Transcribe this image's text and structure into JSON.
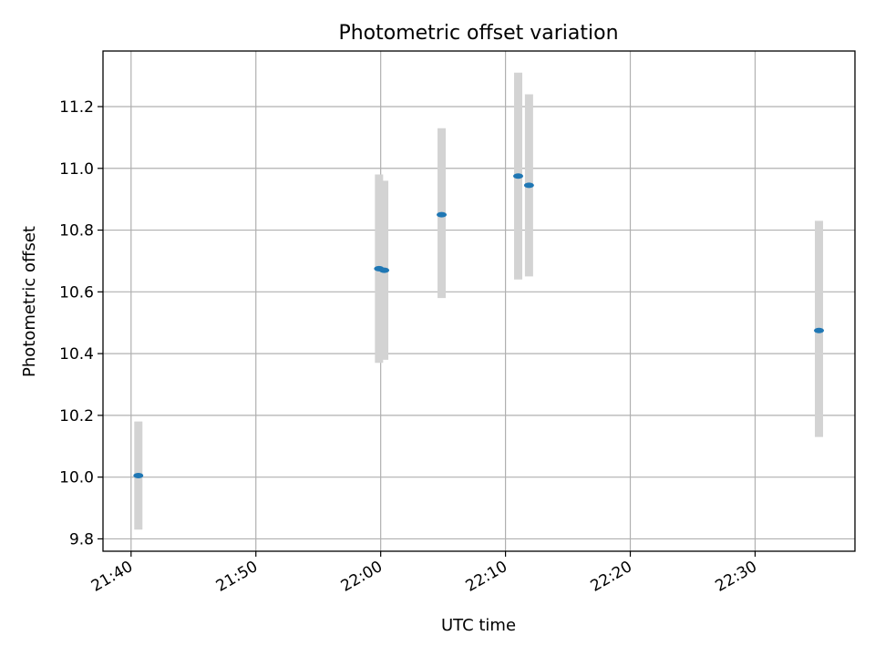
{
  "chart_data": {
    "type": "scatter",
    "title": "Photometric offset variation",
    "xlabel": "UTC time",
    "ylabel": "Photometric offset",
    "x_tick_labels": [
      "21:40",
      "21:50",
      "22:00",
      "22:10",
      "22:20",
      "22:30"
    ],
    "y_tick_labels": [
      "9.8",
      "10.0",
      "10.2",
      "10.4",
      "10.6",
      "10.8",
      "11.0",
      "11.2"
    ],
    "xlim": [
      "21:37:45",
      "22:38:00"
    ],
    "ylim": [
      9.76,
      11.38
    ],
    "grid": true,
    "colors": {
      "points": "#1f77b4",
      "errorbars": "#d3d3d3",
      "grid": "#b0b0b0"
    },
    "points": [
      {
        "x": "21:40:35",
        "y": 10.005,
        "yerr_low": 9.83,
        "yerr_high": 10.18
      },
      {
        "x": "21:59:52",
        "y": 10.675,
        "yerr_low": 10.37,
        "yerr_high": 10.98
      },
      {
        "x": "22:00:17",
        "y": 10.67,
        "yerr_low": 10.38,
        "yerr_high": 10.96
      },
      {
        "x": "22:04:53",
        "y": 10.85,
        "yerr_low": 10.58,
        "yerr_high": 11.13
      },
      {
        "x": "22:11:01",
        "y": 10.975,
        "yerr_low": 10.64,
        "yerr_high": 11.31
      },
      {
        "x": "22:11:53",
        "y": 10.945,
        "yerr_low": 10.65,
        "yerr_high": 11.24
      },
      {
        "x": "22:35:07",
        "y": 10.475,
        "yerr_low": 10.13,
        "yerr_high": 10.83
      }
    ]
  }
}
